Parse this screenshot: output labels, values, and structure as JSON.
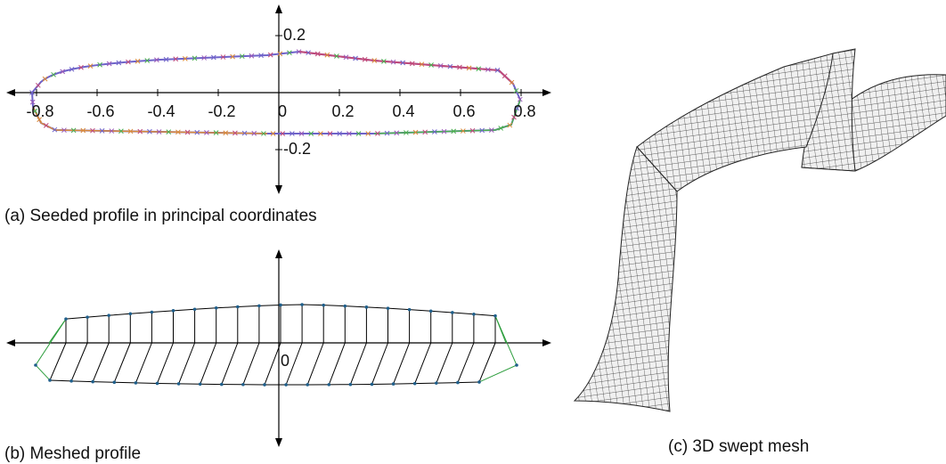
{
  "panels": [
    {
      "caption": "(a) Seeded profile in principal coordinates",
      "xticks": [
        -0.8,
        -0.6,
        -0.4,
        -0.2,
        0,
        0.2,
        0.4,
        0.6,
        0.8
      ],
      "yticks": [
        0.2,
        -0.2
      ]
    },
    {
      "caption": "(b) Meshed profile",
      "origin_label": 0
    },
    {
      "caption": "(c) 3D swept mesh"
    }
  ]
}
